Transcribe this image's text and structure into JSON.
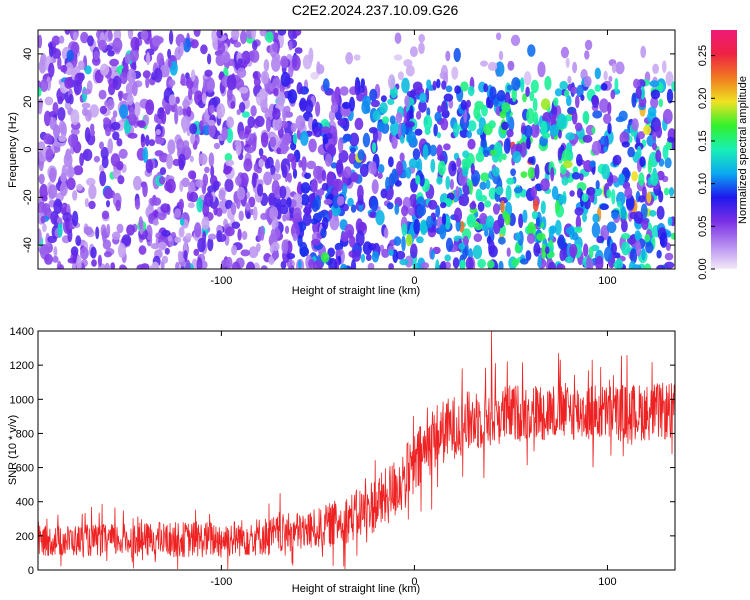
{
  "title": "C2E2.2024.237.10.09.G26",
  "colors": {
    "snr_line": "#ee2222",
    "colorbar": [
      "#f3eaf7",
      "#b58bf0",
      "#7a2fe6",
      "#1e18ee",
      "#0aa9f0",
      "#18f0b4",
      "#33f02c",
      "#f0e222",
      "#f07a20",
      "#ee2244",
      "#f01a78"
    ]
  },
  "chart_data": [
    {
      "type": "heatmap",
      "name": "spectrogram",
      "xlabel": "Height of straight line (km)",
      "ylabel": "Frequency (Hz)",
      "xlim": [
        -195,
        135
      ],
      "ylim": [
        -50,
        50
      ],
      "xticks": [
        -100,
        0,
        100
      ],
      "xtick_labels": [
        "-100",
        "0",
        "100"
      ],
      "yticks": [
        -40,
        -20,
        0,
        20,
        40
      ],
      "ytick_labels": [
        "-40",
        "-20",
        "0",
        "20",
        "40"
      ],
      "colorbar": {
        "label": "Normalized spectral amplitude",
        "range": [
          0,
          0.28
        ],
        "ticks": [
          0.0,
          0.05,
          0.1,
          0.15,
          0.2,
          0.25
        ],
        "tick_labels": [
          "0.00",
          "0.05",
          "0.10",
          "0.15",
          "0.20",
          "0.25"
        ]
      },
      "description_values": {
        "mean_amplitude_by_height": [
          {
            "x": -190,
            "value": 0.05
          },
          {
            "x": -100,
            "value": 0.05
          },
          {
            "x": -75,
            "value": 0.05
          },
          {
            "x": -50,
            "value": 0.07
          },
          {
            "x": 0,
            "value": 0.1
          },
          {
            "x": 50,
            "value": 0.12
          },
          {
            "x": 100,
            "value": 0.11
          },
          {
            "x": 130,
            "value": 0.11
          }
        ],
        "empty_region": {
          "x_from": -60,
          "x_to": 135,
          "freq_from": 28,
          "freq_to": 50
        }
      }
    },
    {
      "type": "line",
      "name": "snr",
      "xlabel": "Height of straight line (km)",
      "ylabel": "SNR (10 * v/v)",
      "xlim": [
        -195,
        135
      ],
      "ylim": [
        0,
        1400
      ],
      "xticks": [
        -100,
        0,
        100
      ],
      "xtick_labels": [
        "-100",
        "0",
        "100"
      ],
      "yticks": [
        0,
        200,
        400,
        600,
        800,
        1000,
        1200,
        1400
      ],
      "ytick_labels": [
        "0",
        "200",
        "400",
        "600",
        "800",
        "1000",
        "1200",
        "1400"
      ],
      "series": [
        {
          "trend": [
            {
              "x": -195,
              "y": 170
            },
            {
              "x": -150,
              "y": 175
            },
            {
              "x": -100,
              "y": 180
            },
            {
              "x": -75,
              "y": 200
            },
            {
              "x": -50,
              "y": 240
            },
            {
              "x": -30,
              "y": 320
            },
            {
              "x": -15,
              "y": 420
            },
            {
              "x": 0,
              "y": 600
            },
            {
              "x": 10,
              "y": 780
            },
            {
              "x": 25,
              "y": 860
            },
            {
              "x": 50,
              "y": 920
            },
            {
              "x": 75,
              "y": 930
            },
            {
              "x": 100,
              "y": 920
            },
            {
              "x": 135,
              "y": 930
            }
          ],
          "noise_amplitude": [
            {
              "x": -195,
              "y": 90
            },
            {
              "x": -50,
              "y": 120
            },
            {
              "x": 0,
              "y": 200
            },
            {
              "x": 50,
              "y": 170
            },
            {
              "x": 135,
              "y": 170
            }
          ],
          "peak": {
            "x": 40,
            "y": 1400
          }
        }
      ]
    }
  ]
}
